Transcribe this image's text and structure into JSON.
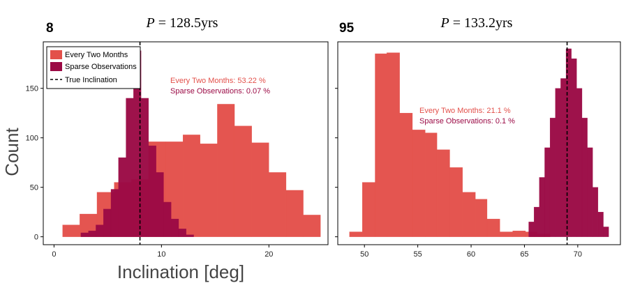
{
  "colors": {
    "every_two_months": "#e3504a",
    "sparse": "#9b0a45",
    "annot_every": "#e3504a",
    "annot_sparse": "#9b0a45",
    "axis": "#000000"
  },
  "legend": {
    "items": [
      {
        "label": "Every Two Months",
        "kind": "patch",
        "color": "#e3504a"
      },
      {
        "label": "Sparse Observations",
        "kind": "patch",
        "color": "#9b0a45"
      },
      {
        "label": "True Inclination",
        "kind": "dashed-line",
        "color": "#000000"
      }
    ]
  },
  "shared": {
    "ylabel": "Count",
    "xlabel": "Inclination [deg]"
  },
  "chart_data": [
    {
      "type": "bar",
      "panel_label": "8",
      "title": "P = 128.5yrs",
      "title_italic": "P",
      "title_rest": " = 128.5yrs",
      "xlabel": "Inclination [deg]",
      "ylabel": "Count",
      "xlim": [
        -1,
        25.5
      ],
      "ylim": [
        -8,
        197
      ],
      "xticks": [
        0,
        10,
        20
      ],
      "yticks": [
        0,
        50,
        100,
        150
      ],
      "true_inclination": 8,
      "legend_position": "top-left",
      "annotations": [
        {
          "text": "Every Two Months: 53.22 %",
          "series": "Every Two Months"
        },
        {
          "text": "Sparse Observations: 0.07 %",
          "series": "Sparse Observations"
        }
      ],
      "series": [
        {
          "name": "Every Two Months",
          "color": "#e3504a",
          "bin_edges": [
            0.8,
            2.4,
            4.0,
            5.6,
            7.2,
            8.8,
            10.4,
            12.0,
            13.6,
            15.2,
            16.8,
            18.4,
            20.0,
            21.6,
            23.2,
            24.8
          ],
          "counts": [
            12,
            23,
            45,
            55,
            58,
            96,
            96,
            103,
            94,
            134,
            112,
            95,
            65,
            47,
            22
          ]
        },
        {
          "name": "Sparse Observations",
          "color": "#9b0a45",
          "bin_edges": [
            2.5,
            3.2,
            3.9,
            4.6,
            5.3,
            6.0,
            6.7,
            7.4,
            8.1,
            8.8,
            9.5,
            10.2,
            10.9,
            11.6,
            12.3,
            13.0
          ],
          "counts": [
            4,
            6,
            12,
            28,
            48,
            80,
            140,
            188,
            140,
            92,
            65,
            35,
            18,
            8,
            2
          ]
        }
      ]
    },
    {
      "type": "bar",
      "panel_label": "95",
      "title": "P = 133.2yrs",
      "title_italic": "P",
      "title_rest": " = 133.2yrs",
      "xlabel": "",
      "ylabel": "",
      "xlim": [
        47.5,
        74
      ],
      "ylim": [
        -8,
        197
      ],
      "xticks": [
        50,
        55,
        60,
        65,
        70
      ],
      "yticks": [],
      "true_inclination": 69,
      "legend_position": "none",
      "annotations": [
        {
          "text": "Every Two Months: 21.1 %",
          "series": "Every Two Months"
        },
        {
          "text": "Sparse Observations: 0.1 %",
          "series": "Sparse Observations"
        }
      ],
      "series": [
        {
          "name": "Every Two Months",
          "color": "#e3504a",
          "bin_edges": [
            48.6,
            49.8,
            51.0,
            52.1,
            53.3,
            54.5,
            55.7,
            56.8,
            58.0,
            59.2,
            60.4,
            61.5,
            62.7,
            63.9,
            65.1,
            66.2,
            67.4
          ],
          "counts": [
            5,
            55,
            185,
            186,
            125,
            108,
            105,
            88,
            70,
            45,
            38,
            18,
            5,
            6,
            5,
            3
          ]
        },
        {
          "name": "Sparse Observations",
          "color": "#9b0a45",
          "bin_edges": [
            65.4,
            65.9,
            66.4,
            66.9,
            67.4,
            67.9,
            68.4,
            68.9,
            69.4,
            69.9,
            70.4,
            70.9,
            71.4,
            71.9,
            72.4,
            72.9
          ],
          "counts": [
            15,
            30,
            60,
            90,
            120,
            150,
            160,
            190,
            180,
            150,
            120,
            90,
            50,
            25,
            10
          ]
        }
      ]
    }
  ]
}
